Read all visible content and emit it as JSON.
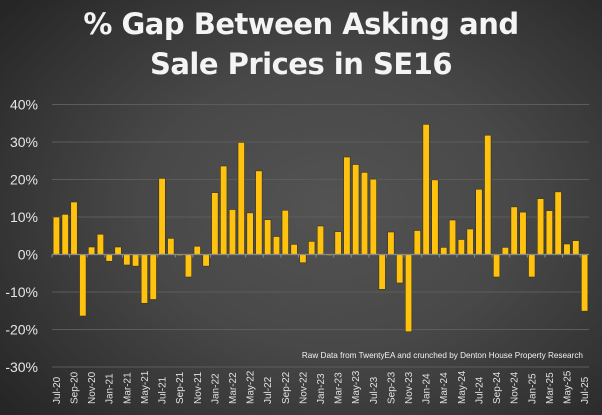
{
  "chart_data": {
    "type": "bar",
    "title": "% Gap Between Asking and Sale Prices in SE16",
    "title_lines": [
      "% Gap Between Asking and",
      "Sale Prices in SE16"
    ],
    "xlabel": "",
    "ylabel": "",
    "ylim": [
      -30,
      40
    ],
    "yticks": [
      40,
      30,
      20,
      10,
      0,
      -10,
      -20,
      -30
    ],
    "ytick_labels": [
      "40%",
      "30%",
      "20%",
      "10%",
      "0%",
      "-10%",
      "-20%",
      "-30%"
    ],
    "grid": true,
    "bar_color": "#FFC20E",
    "source_note": "Raw Data from TwentyEA and crunched by Denton House Property Research",
    "categories": [
      "Jul-20",
      "Aug-20",
      "Sep-20",
      "Oct-20",
      "Nov-20",
      "Dec-20",
      "Jan-21",
      "Feb-21",
      "Mar-21",
      "Apr-21",
      "May-21",
      "Jun-21",
      "Jul-21",
      "Aug-21",
      "Sep-21",
      "Oct-21",
      "Nov-21",
      "Dec-21",
      "Jan-22",
      "Feb-22",
      "Mar-22",
      "Apr-22",
      "May-22",
      "Jun-22",
      "Jul-22",
      "Aug-22",
      "Sep-22",
      "Oct-22",
      "Nov-22",
      "Dec-22",
      "Jan-23",
      "Feb-23",
      "Mar-23",
      "Apr-23",
      "May-23",
      "Jun-23",
      "Jul-23",
      "Aug-23",
      "Sep-23",
      "Oct-23",
      "Nov-23",
      "Dec-23",
      "Jan-24",
      "Feb-24",
      "Mar-24",
      "Apr-24",
      "May-24",
      "Jun-24",
      "Jul-24",
      "Aug-24",
      "Sep-24",
      "Oct-24",
      "Nov-24",
      "Dec-24",
      "Jan-25",
      "Feb-25",
      "Mar-25",
      "Apr-25",
      "May-25",
      "Jun-25",
      "Jul-25"
    ],
    "xtick_labels": [
      "Jul-20",
      "Sep-20",
      "Nov-20",
      "Jan-21",
      "Mar-21",
      "May-21",
      "Jul-21",
      "Sep-21",
      "Nov-21",
      "Jan-22",
      "Mar-22",
      "May-22",
      "Jul-22",
      "Sep-22",
      "Nov-22",
      "Jan-23",
      "Mar-23",
      "May-23",
      "Jul-23",
      "Sep-23",
      "Nov-23",
      "Jan-24",
      "Mar-24",
      "May-24",
      "Jul-24",
      "Sep-24",
      "Nov-24",
      "Jan-25",
      "Mar-25",
      "May-25",
      "Jul-25"
    ],
    "series": [
      {
        "name": "% Gap",
        "values": [
          10.0,
          10.7,
          14.0,
          -16.4,
          2.0,
          5.4,
          -1.8,
          2.0,
          -2.8,
          -3.1,
          -13.0,
          -12.0,
          20.3,
          4.3,
          -0.2,
          -6.0,
          2.2,
          -3.1,
          16.5,
          23.6,
          12.0,
          29.9,
          11.1,
          22.3,
          9.3,
          4.8,
          11.8,
          2.7,
          -2.2,
          3.5,
          7.6,
          -0.3,
          6.1,
          26.0,
          24.0,
          21.9,
          20.1,
          -9.3,
          6.0,
          -7.6,
          -20.6,
          6.4,
          34.7,
          19.9,
          1.9,
          9.2,
          4.0,
          6.8,
          17.4,
          31.8,
          -6.0,
          1.9,
          12.7,
          11.3,
          -6.0,
          14.9,
          11.7,
          16.7,
          2.8,
          3.7,
          -15.1
        ]
      }
    ]
  }
}
